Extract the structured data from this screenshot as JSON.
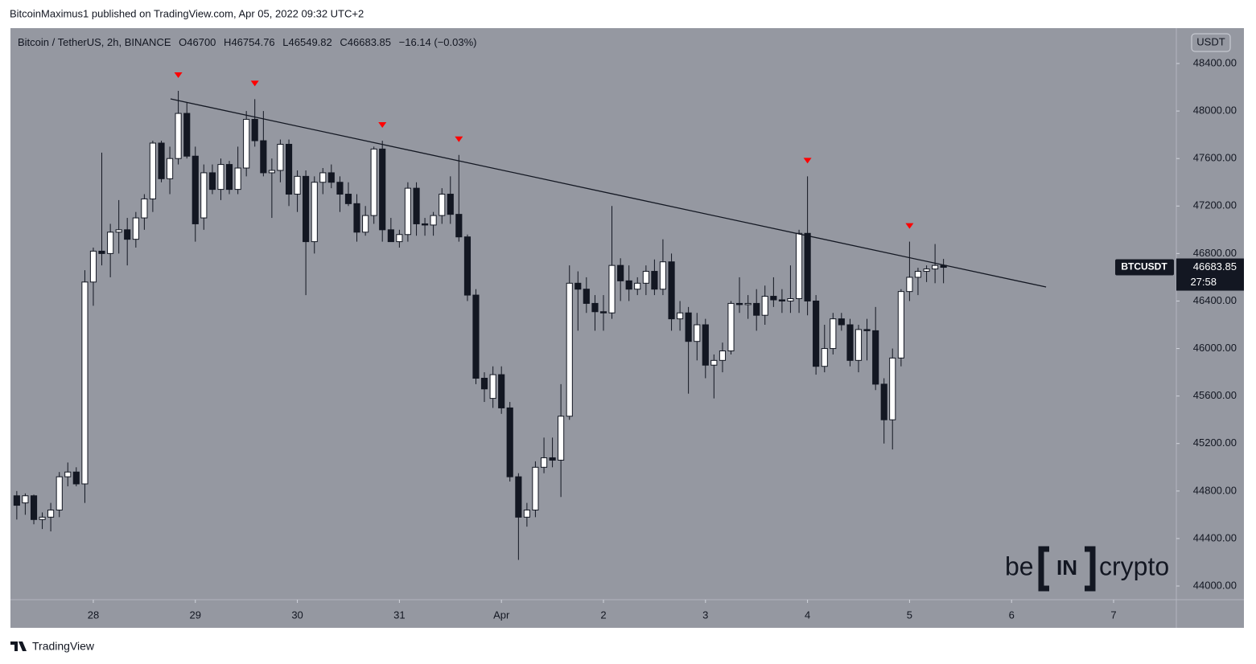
{
  "header": "BitcoinMaximus1 published on TradingView.com, Apr 05, 2022 09:32 UTC+2",
  "footer": "TradingView",
  "watermark": {
    "left": "be",
    "middle": "IN",
    "right": "crypto"
  },
  "chart_data": {
    "type": "candlestick",
    "title": "Bitcoin / TetherUS, 2h, BINANCE",
    "ohlc_labels": [
      "O",
      "H",
      "L",
      "C"
    ],
    "change": "−16.14 (−0.03%)",
    "y_axis_unit": "USDT",
    "price_label": {
      "symbol": "BTCUSDT",
      "countdown": "27:58"
    },
    "up_color": "#ffffff",
    "down_color": "#131722",
    "wick_color": "#131722",
    "background": "#9598a1",
    "grid": false,
    "x": [
      27.25,
      27.333,
      27.417,
      27.5,
      27.583,
      27.667,
      27.75,
      27.833,
      27.917,
      28,
      28.083,
      28.167,
      28.25,
      28.333,
      28.417,
      28.5,
      28.583,
      28.667,
      28.75,
      28.833,
      28.917,
      29,
      29.083,
      29.167,
      29.25,
      29.333,
      29.417,
      29.5,
      29.583,
      29.667,
      29.75,
      29.833,
      29.917,
      30,
      30.083,
      30.167,
      30.25,
      30.333,
      30.417,
      30.5,
      30.583,
      30.667,
      30.75,
      30.833,
      30.917,
      31,
      31.083,
      31.167,
      31.25,
      31.333,
      31.417,
      31.5,
      31.583,
      31.667,
      31.75,
      31.833,
      31.917,
      32,
      32.083,
      32.167,
      32.25,
      32.333,
      32.417,
      32.5,
      32.583,
      32.667,
      32.75,
      32.833,
      32.917,
      33,
      33.083,
      33.167,
      33.25,
      33.333,
      33.417,
      33.5,
      33.583,
      33.667,
      33.75,
      33.833,
      33.917,
      34,
      34.083,
      34.167,
      34.25,
      34.333,
      34.417,
      34.5,
      34.583,
      34.667,
      34.75,
      34.833,
      34.917,
      35,
      35.083,
      35.167,
      35.25,
      35.333,
      35.417,
      35.5,
      35.583,
      35.667,
      35.75,
      35.833,
      35.917,
      36,
      36.083,
      36.167,
      36.25,
      36.333
    ],
    "open": [
      44760,
      44700,
      44760,
      44560,
      44580,
      44640,
      44920,
      44960,
      44860,
      46560,
      46820,
      46800,
      46980,
      47000,
      46920,
      47100,
      47260,
      47730,
      47430,
      47600,
      47980,
      47620,
      47100,
      47480,
      47340,
      47550,
      47340,
      47520,
      47930,
      47750,
      47480,
      47500,
      47720,
      47300,
      47450,
      46900,
      47400,
      47480,
      47400,
      47300,
      47220,
      46980,
      47120,
      47680,
      47000,
      46900,
      46960,
      47350,
      47050,
      47040,
      47120,
      47300,
      47130,
      46940,
      46450,
      45750,
      45580,
      45780,
      45500,
      44920,
      44580,
      44640,
      45000,
      45080,
      45060,
      45430,
      46550,
      46500,
      46380,
      46310,
      46300,
      46700,
      46570,
      46500,
      46550,
      46650,
      46500,
      46730,
      46250,
      46300,
      46060,
      46200,
      45860,
      45900,
      45980,
      46380,
      46370,
      46380,
      46280,
      46440,
      46410,
      46400,
      46420,
      46970,
      46400,
      45850,
      46000,
      46250,
      46200,
      45900,
      46160,
      46150,
      45700,
      45400,
      45920,
      46480,
      46600,
      46650,
      46670,
      46700.0
    ],
    "high": [
      44800,
      44780,
      44770,
      44620,
      44700,
      44960,
      45040,
      45000,
      46660,
      46850,
      47650,
      47050,
      47250,
      47100,
      47150,
      47300,
      47750,
      47750,
      47700,
      48170,
      48070,
      47700,
      47550,
      47550,
      47600,
      47580,
      47700,
      48000,
      48100,
      48000,
      47600,
      47760,
      47760,
      47500,
      47500,
      47450,
      47520,
      47550,
      47450,
      47400,
      47300,
      47200,
      47700,
      47750,
      47100,
      47000,
      47400,
      47400,
      47100,
      47150,
      47350,
      47450,
      47630,
      46960,
      46500,
      45800,
      45850,
      45850,
      45550,
      44950,
      44700,
      45050,
      45250,
      45250,
      45700,
      46700,
      46650,
      46600,
      46450,
      46450,
      47200,
      46760,
      46700,
      46600,
      46700,
      46750,
      46920,
      46800,
      46400,
      46350,
      46300,
      46250,
      45950,
      46050,
      46400,
      46600,
      46450,
      46500,
      46530,
      46600,
      46500,
      46700,
      47000,
      47450,
      46450,
      46200,
      46300,
      46300,
      46250,
      46200,
      46250,
      46350,
      45750,
      46000,
      46500,
      46900,
      46680,
      46700,
      46880,
      46754.76
    ],
    "low": [
      44560,
      44600,
      44520,
      44480,
      44460,
      44580,
      44840,
      44840,
      44700,
      46360,
      46700,
      46600,
      46800,
      46700,
      46850,
      47000,
      47150,
      47400,
      47300,
      47550,
      47600,
      46900,
      47000,
      47300,
      47250,
      47300,
      47300,
      47450,
      47700,
      47450,
      47100,
      47400,
      47200,
      47150,
      46450,
      46800,
      47300,
      47350,
      47150,
      47200,
      46900,
      46950,
      47050,
      46900,
      46900,
      46850,
      46900,
      46950,
      46950,
      46950,
      47050,
      47050,
      46900,
      46400,
      45700,
      45550,
      45500,
      45450,
      44880,
      44220,
      44500,
      44580,
      44950,
      45000,
      44750,
      45400,
      46150,
      46300,
      46150,
      46150,
      46250,
      46400,
      46400,
      46450,
      46450,
      46450,
      46450,
      46150,
      46150,
      45620,
      45900,
      45750,
      45580,
      45800,
      45950,
      46300,
      46250,
      46150,
      46200,
      46350,
      46300,
      46300,
      46300,
      46280,
      45780,
      45800,
      45950,
      46150,
      45850,
      45800,
      45900,
      45650,
      45200,
      45150,
      45850,
      46400,
      46450,
      46560,
      46550,
      46549.82
    ],
    "close": [
      44680,
      44760,
      44560,
      44580,
      44640,
      44920,
      44960,
      44860,
      46560,
      46820,
      46800,
      46980,
      47000,
      46920,
      47100,
      47260,
      47730,
      47430,
      47600,
      47980,
      47620,
      47050,
      47480,
      47340,
      47550,
      47340,
      47520,
      47930,
      47750,
      47480,
      47500,
      47720,
      47300,
      47450,
      46900,
      47400,
      47480,
      47400,
      47300,
      47220,
      46980,
      47120,
      47680,
      47000,
      46900,
      46960,
      47350,
      47050,
      47040,
      47120,
      47300,
      47130,
      46940,
      46450,
      45750,
      45660,
      45780,
      45500,
      44920,
      44580,
      44640,
      45000,
      45080,
      45060,
      45430,
      46550,
      46500,
      46380,
      46310,
      46300,
      46700,
      46570,
      46500,
      46550,
      46650,
      46500,
      46730,
      46250,
      46300,
      46060,
      46200,
      45860,
      45900,
      45980,
      46380,
      46370,
      46380,
      46280,
      46440,
      46410,
      46400,
      46420,
      46970,
      46400,
      45850,
      46000,
      46250,
      46200,
      45900,
      46160,
      46150,
      45700,
      45400,
      45920,
      46480,
      46600,
      46650,
      46670,
      46700,
      46683.85
    ],
    "peaks": [
      19,
      28,
      43,
      52,
      93,
      105
    ],
    "peak_color": "#ff0000",
    "trendline": {
      "x": [
        28.757,
        37.338
      ],
      "y": [
        48102,
        46518
      ],
      "color": "#131722"
    },
    "xlim": [
      27.188,
      38.615
    ],
    "ylim": [
      43885,
      48698
    ],
    "xticks": [
      28,
      29,
      30,
      31,
      {
        "value": 32,
        "label": "Apr"
      },
      {
        "value": 33,
        "label": "2"
      },
      {
        "value": 34,
        "label": "3"
      },
      {
        "value": 35,
        "label": "4"
      },
      {
        "value": 36,
        "label": "5"
      },
      {
        "value": 37,
        "label": "6"
      },
      {
        "value": 38,
        "label": "7"
      }
    ],
    "yticks": [
      {
        "value": 44000,
        "label": "44000.00"
      },
      {
        "value": 44400,
        "label": "44400.00"
      },
      {
        "value": 44800,
        "label": "44800.00"
      },
      {
        "value": 45200,
        "label": "45200.00"
      },
      {
        "value": 45600,
        "label": "45600.00"
      },
      {
        "value": 46000,
        "label": "46000.00"
      },
      {
        "value": 46400,
        "label": "46400.00"
      },
      {
        "value": 46800,
        "label": "46800.00"
      },
      {
        "value": 47200,
        "label": "47200.00"
      },
      {
        "value": 47600,
        "label": "47600.00"
      },
      {
        "value": 48000,
        "label": "48000.00"
      },
      {
        "value": 48400,
        "label": "48400.00"
      }
    ]
  }
}
